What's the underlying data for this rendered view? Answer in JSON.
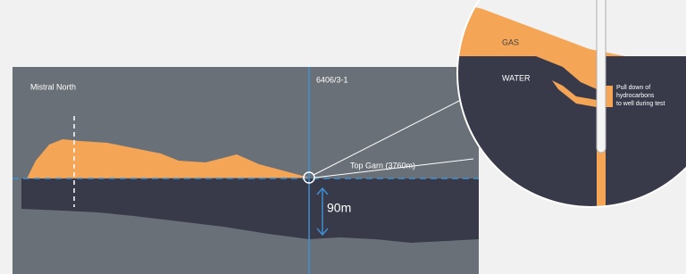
{
  "labels": {
    "left_well": "Mistral North",
    "right_well": "6406/3-1",
    "horizon": "Top Garn (3760m)",
    "thickness": "90m"
  },
  "inset": {
    "gas": "GAS",
    "water": "WATER",
    "note": [
      "Pull down of",
      "hydrocarbons",
      "to well during test"
    ]
  }
}
